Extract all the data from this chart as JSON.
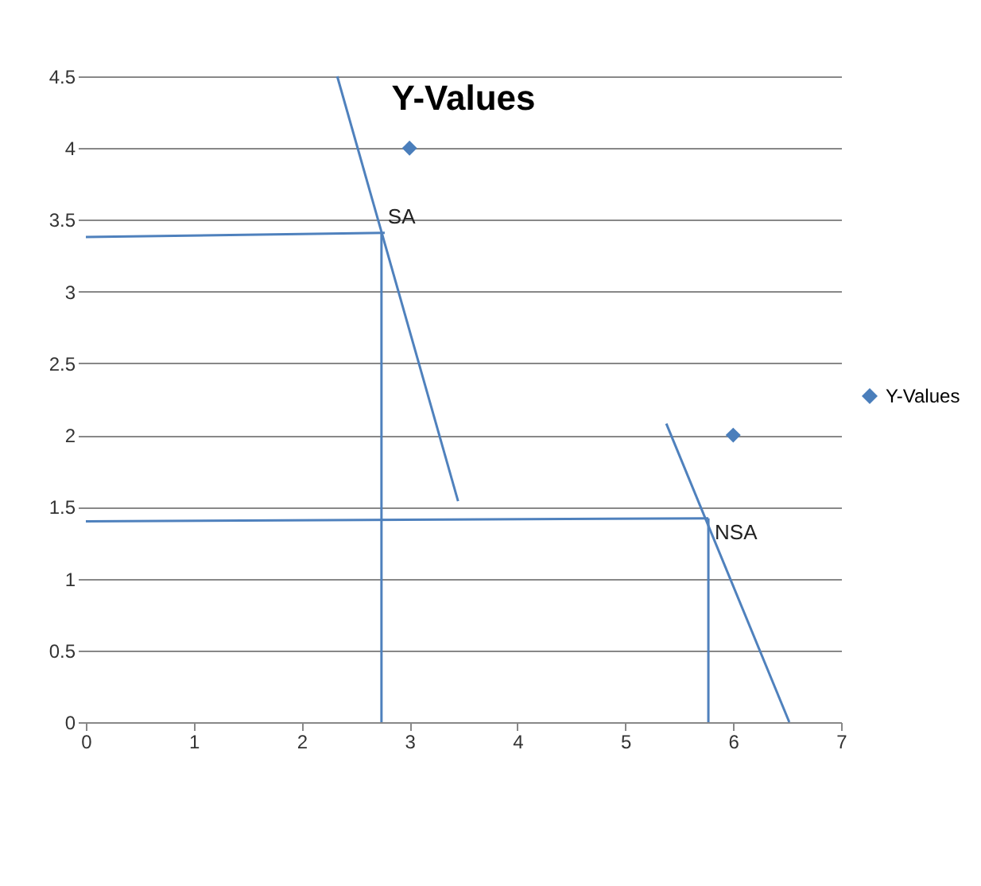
{
  "chart_data": {
    "type": "scatter",
    "title": "Y-Values",
    "xlim": [
      0,
      7
    ],
    "xticks": [
      0,
      1,
      2,
      3,
      4,
      5,
      6,
      7
    ],
    "ylim": [
      0,
      4.5
    ],
    "yticks": [
      0,
      0.5,
      1,
      1.5,
      2,
      2.5,
      3,
      3.5,
      4,
      4.5
    ],
    "grid": "y",
    "legend": "right",
    "marker": "none",
    "series": [
      {
        "name": "Y-Values",
        "color": "#4a7ebb",
        "marker": "diamond",
        "x": [
          3,
          6
        ],
        "values": [
          4,
          2
        ]
      },
      {
        "type": "line",
        "color": "#4f81bd",
        "x": [
          2.33,
          3.45
        ],
        "values": [
          4.5,
          1.54
        ]
      },
      {
        "type": "line",
        "color": "#4f81bd",
        "x": [
          0,
          2.77
        ],
        "values": [
          3.38,
          3.41
        ]
      },
      {
        "type": "line",
        "color": "#4f81bd",
        "x": [
          2.74,
          2.74
        ],
        "values": [
          3.41,
          0
        ]
      },
      {
        "type": "line",
        "color": "#4f81bd",
        "x": [
          5.38,
          6.52
        ],
        "values": [
          2.08,
          0
        ]
      },
      {
        "type": "line",
        "color": "#4f81bd",
        "x": [
          0,
          5.77
        ],
        "values": [
          1.4,
          1.42
        ]
      },
      {
        "type": "line",
        "color": "#4f81bd",
        "x": [
          5.77,
          5.77
        ],
        "values": [
          1.42,
          0
        ]
      }
    ],
    "annotations": [
      {
        "text": "SA",
        "x": 2.74,
        "y": 3.41
      },
      {
        "text": "NSA",
        "x": 5.77,
        "y": 1.42
      }
    ]
  }
}
